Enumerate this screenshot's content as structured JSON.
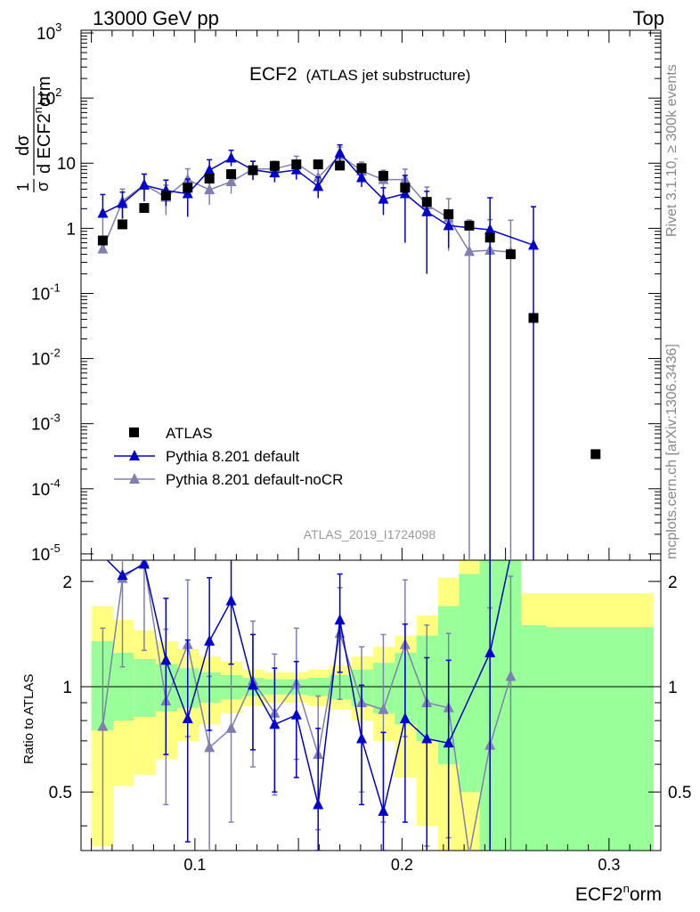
{
  "header": {
    "left": "13000 GeV pp",
    "right": "Top"
  },
  "side_labels": {
    "rivet": "Rivet 3.1.10, ≥ 300k events",
    "mcplots": "mcplots.cern.ch [arXiv:1306.3436]"
  },
  "colors": {
    "data": "#000000",
    "pythia_default": "#0000cc",
    "pythia_nocr": "#7f7fb2",
    "band_inner": "#99ff99",
    "band_outer": "#ffff80",
    "watermark": "#999999"
  },
  "chart_data": [
    {
      "type": "scatter",
      "panel": "main",
      "title": "ECF2",
      "subtitle": "(ATLAS jet substructure)",
      "watermark": "ATLAS_2019_I1724098",
      "ylabel_parts": {
        "top": "1",
        "bottom": "σ",
        "num": "dσ",
        "den": "d ECF2",
        "den_sup": "n",
        "den_tail": "orm"
      },
      "xlabel": "ECF2",
      "xlabel_sup": "n",
      "xlabel_tail": "orm",
      "xlim": [
        0.045,
        0.325
      ],
      "ylim": [
        8e-06,
        1100
      ],
      "yscale": "log",
      "ytick_labels": [
        {
          "mant": "10",
          "exp": "-5",
          "value": 1e-05
        },
        {
          "mant": "10",
          "exp": "-4",
          "value": 0.0001
        },
        {
          "mant": "10",
          "exp": "-3",
          "value": 0.001
        },
        {
          "mant": "10",
          "exp": "-2",
          "value": 0.01
        },
        {
          "mant": "10",
          "exp": "-1",
          "value": 0.1
        },
        {
          "mant": "1",
          "exp": "",
          "value": 1
        },
        {
          "mant": "10",
          "exp": "",
          "value": 10
        },
        {
          "mant": "10",
          "exp": "2",
          "value": 100
        },
        {
          "mant": "10",
          "exp": "3",
          "value": 1000
        }
      ],
      "legend": [
        "ATLAS",
        "Pythia 8.201 default",
        "Pythia 8.201 default-noCR"
      ],
      "legend_position": "lower-left",
      "series": [
        {
          "name": "ATLAS",
          "marker": "square",
          "x": [
            0.0555,
            0.065,
            0.0755,
            0.086,
            0.0965,
            0.107,
            0.1175,
            0.128,
            0.1385,
            0.149,
            0.1595,
            0.17,
            0.1805,
            0.191,
            0.2015,
            0.212,
            0.2225,
            0.2325,
            0.2425,
            0.2525,
            0.2635,
            0.2935
          ],
          "y": [
            0.65,
            1.15,
            2.05,
            3.2,
            4.2,
            5.8,
            6.8,
            7.8,
            9.1,
            9.6,
            9.6,
            9.2,
            8.4,
            6.4,
            4.2,
            2.55,
            1.65,
            1.1,
            0.72,
            0.4,
            0.042,
            0.00034
          ]
        },
        {
          "name": "Pythia 8.201 default",
          "marker": "triangle",
          "x": [
            0.0555,
            0.065,
            0.0755,
            0.086,
            0.0965,
            0.107,
            0.1175,
            0.128,
            0.1385,
            0.149,
            0.1595,
            0.17,
            0.1805,
            0.191,
            0.2015,
            0.212,
            0.2225,
            0.2425,
            0.2635
          ],
          "y": [
            1.7,
            2.4,
            4.6,
            3.8,
            3.4,
            7.8,
            12.0,
            7.9,
            7.1,
            7.9,
            4.4,
            14.3,
            6.0,
            2.8,
            3.4,
            1.8,
            1.1,
            0.95,
            0.55
          ],
          "err_lo": [
            1e-05,
            1.0,
            2.0,
            1.6,
            1.9,
            3.0,
            3.0,
            2.4,
            2.0,
            2.3,
            1.5,
            4.0,
            1.7,
            1.2,
            2.8,
            1.6,
            0.6,
            0.95,
            0.55
          ],
          "err_hi": [
            1.6,
            1.2,
            2.2,
            1.7,
            2.3,
            3.5,
            3.8,
            2.8,
            2.3,
            2.7,
            1.7,
            4.8,
            2.1,
            1.4,
            3.1,
            1.9,
            0.7,
            2.0,
            1.6
          ]
        },
        {
          "name": "Pythia 8.201 default-noCR",
          "marker": "triangle",
          "x": [
            0.0555,
            0.065,
            0.0755,
            0.086,
            0.0965,
            0.107,
            0.1175,
            0.128,
            0.1385,
            0.149,
            0.1595,
            0.17,
            0.1805,
            0.191,
            0.2015,
            0.212,
            0.2225,
            0.2325,
            0.2425,
            0.2525
          ],
          "y": [
            0.48,
            2.6,
            4.7,
            3.0,
            5.6,
            3.9,
            5.2,
            8.1,
            8.2,
            9.9,
            6.0,
            13.3,
            7.6,
            5.6,
            5.6,
            2.3,
            1.45,
            0.44,
            0.46,
            0.43
          ],
          "err_lo": [
            1e-05,
            1.2,
            1.8,
            1.4,
            2.3,
            1.6,
            1.8,
            2.3,
            2.2,
            2.6,
            2.0,
            4.0,
            2.4,
            1.9,
            2.2,
            1.5,
            1.0,
            0.44,
            0.46,
            0.43
          ],
          "err_hi": [
            1.3,
            1.4,
            2.1,
            1.6,
            2.6,
            1.9,
            2.1,
            2.6,
            2.5,
            2.9,
            2.3,
            4.4,
            2.8,
            2.2,
            2.5,
            2.0,
            1.4,
            0.9,
            0.9,
            0.9
          ]
        }
      ]
    },
    {
      "type": "line",
      "panel": "ratio",
      "ylabel": "Ratio to ATLAS",
      "xlim": [
        0.045,
        0.325
      ],
      "ylim": [
        0.34,
        2.3
      ],
      "yscale": "log",
      "ytick_labels": [
        {
          "label": "0.5",
          "value": 0.5
        },
        {
          "label": "1",
          "value": 1
        },
        {
          "label": "2",
          "value": 2
        }
      ],
      "xtick_labels": [
        {
          "label": "0.1",
          "value": 0.1
        },
        {
          "label": "0.2",
          "value": 0.2
        },
        {
          "label": "0.3",
          "value": 0.3
        }
      ],
      "reference_line": 1,
      "bands": {
        "edges": [
          0.05,
          0.0605,
          0.0705,
          0.081,
          0.0915,
          0.102,
          0.1125,
          0.123,
          0.1335,
          0.144,
          0.1545,
          0.165,
          0.1755,
          0.186,
          0.1965,
          0.207,
          0.2175,
          0.2275,
          0.2375,
          0.2475,
          0.2575,
          0.2695,
          0.3215
        ],
        "inner_lo": [
          0.75,
          0.8,
          0.82,
          0.85,
          0.87,
          0.9,
          0.92,
          0.94,
          0.95,
          0.95,
          0.94,
          0.92,
          0.88,
          0.84,
          0.78,
          0.7,
          0.6,
          0.5,
          0.3,
          0.3,
          0.3,
          0.3
        ],
        "inner_hi": [
          1.35,
          1.25,
          1.2,
          1.16,
          1.13,
          1.1,
          1.08,
          1.06,
          1.05,
          1.05,
          1.06,
          1.08,
          1.12,
          1.17,
          1.25,
          1.4,
          1.7,
          2.1,
          2.4,
          2.4,
          1.5,
          1.48
        ],
        "outer_lo": [
          0.35,
          0.52,
          0.56,
          0.62,
          0.7,
          0.78,
          0.84,
          0.88,
          0.9,
          0.9,
          0.88,
          0.86,
          0.8,
          0.7,
          0.55,
          0.4,
          0.3,
          0.3,
          0.3,
          0.3,
          0.3,
          0.3
        ],
        "outer_hi": [
          1.7,
          1.55,
          1.45,
          1.35,
          1.28,
          1.22,
          1.18,
          1.12,
          1.1,
          1.1,
          1.12,
          1.15,
          1.22,
          1.3,
          1.4,
          1.6,
          2.05,
          2.4,
          2.4,
          2.4,
          1.85,
          1.85
        ]
      },
      "series": [
        {
          "name": "Pythia 8.201 default",
          "x": [
            0.0555,
            0.065,
            0.0755,
            0.086,
            0.0965,
            0.107,
            0.1175,
            0.128,
            0.1385,
            0.149,
            0.1595,
            0.17,
            0.1805,
            0.191,
            0.2015,
            0.212,
            0.2225,
            0.2425,
            0.2525
          ],
          "y": [
            2.6,
            2.08,
            2.24,
            1.19,
            0.81,
            1.35,
            1.76,
            1.01,
            0.78,
            0.83,
            0.46,
            1.55,
            0.71,
            0.44,
            0.81,
            0.71,
            0.69,
            1.25,
            3.0
          ],
          "err_lo": [
            0.0,
            0.0,
            0.0,
            0.55,
            0.45,
            0.6,
            0.6,
            0.35,
            0.28,
            0.28,
            0.12,
            0.45,
            0.25,
            0.1,
            0.4,
            0.4,
            0.4,
            1.0,
            0.0
          ],
          "err_hi": [
            0.0,
            0.0,
            0.0,
            0.6,
            0.55,
            0.7,
            0.6,
            0.4,
            0.35,
            0.35,
            0.3,
            0.55,
            0.3,
            0.3,
            0.7,
            0.5,
            0.5,
            1.5,
            0.0
          ]
        },
        {
          "name": "Pythia 8.201 default-noCR",
          "x": [
            0.0555,
            0.065,
            0.0755,
            0.086,
            0.0965,
            0.107,
            0.1175,
            0.128,
            0.1385,
            0.149,
            0.1595,
            0.17,
            0.1805,
            0.191,
            0.2015,
            0.212,
            0.2225,
            0.2325,
            0.2425,
            0.2525
          ],
          "y": [
            0.77,
            2.04,
            2.27,
            0.91,
            1.32,
            0.67,
            0.76,
            1.04,
            0.84,
            1.02,
            0.64,
            1.42,
            0.9,
            0.86,
            1.32,
            0.9,
            0.87,
            0.33,
            0.68,
            1.07
          ],
          "err_lo": [
            0.6,
            0.9,
            1.0,
            0.45,
            0.6,
            0.35,
            0.35,
            0.45,
            0.35,
            0.4,
            0.25,
            0.5,
            0.4,
            0.45,
            0.6,
            0.55,
            0.5,
            0.0,
            0.68,
            0.8
          ],
          "err_hi": [
            0.7,
            1.0,
            1.0,
            0.55,
            0.7,
            0.4,
            0.4,
            0.5,
            0.4,
            0.45,
            0.3,
            0.5,
            0.4,
            0.55,
            0.7,
            0.6,
            0.55,
            0.0,
            1.0,
            1.0
          ]
        }
      ]
    }
  ]
}
